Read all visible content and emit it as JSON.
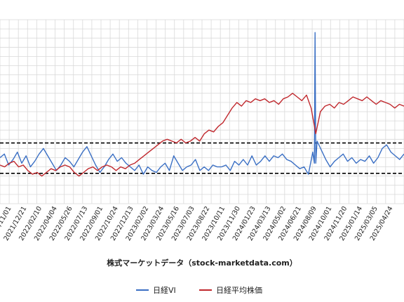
{
  "chart_data": {
    "type": "line",
    "x_tick_labels": [
      "2021/11/01",
      "2021/12/21",
      "2022/02/10",
      "2022/04/04",
      "2022/05/26",
      "2022/07/13",
      "2022/09/01",
      "2022/10/24",
      "2022/12/13",
      "2023/02/02",
      "2023/03/24",
      "2023/05/16",
      "2023/07/03",
      "2023/08/22",
      "2023/10/11",
      "2023/11/30",
      "2024/01/23",
      "2024/03/13",
      "2024/05/02",
      "2024/06/21",
      "2024/08/09",
      "2024/10/01",
      "2024/11/20",
      "2025/01/14",
      "2025/03/05",
      "2025/04/24"
    ],
    "reference_lines": [
      {
        "style": "dashed",
        "color": "#000000",
        "y_fraction_of_plot": 0.67
      },
      {
        "style": "dashed",
        "color": "#000000",
        "y_fraction_of_plot": 0.835
      }
    ],
    "grid": true,
    "legend_placement": "bottom",
    "series": [
      {
        "name": "日経VI",
        "color": "#3a6fc4",
        "values": [
          0.75,
          0.73,
          0.79,
          0.76,
          0.72,
          0.78,
          0.74,
          0.8,
          0.77,
          0.73,
          0.7,
          0.74,
          0.78,
          0.82,
          0.79,
          0.75,
          0.77,
          0.8,
          0.76,
          0.72,
          0.69,
          0.74,
          0.79,
          0.83,
          0.8,
          0.76,
          0.73,
          0.77,
          0.75,
          0.78,
          0.8,
          0.82,
          0.79,
          0.84,
          0.8,
          0.82,
          0.83,
          0.8,
          0.78,
          0.82,
          0.74,
          0.78,
          0.82,
          0.8,
          0.79,
          0.76,
          0.82,
          0.8,
          0.82,
          0.79,
          0.8,
          0.8,
          0.79,
          0.82,
          0.77,
          0.79,
          0.76,
          0.79,
          0.74,
          0.79,
          0.77,
          0.74,
          0.77,
          0.74,
          0.75,
          0.73,
          0.76,
          0.77,
          0.79,
          0.81,
          0.8,
          0.84,
          0.72,
          0.66,
          0.71,
          0.76,
          0.8,
          0.77,
          0.75,
          0.73,
          0.77,
          0.75,
          0.78,
          0.76,
          0.77,
          0.74,
          0.78,
          0.75,
          0.7,
          0.68,
          0.72,
          0.74,
          0.76,
          0.73
        ],
        "spike": {
          "near_label": "2024/08/09",
          "value": 0.07
        }
      },
      {
        "name": "日経平均株価",
        "color": "#c0282d",
        "values": [
          0.79,
          0.8,
          0.78,
          0.77,
          0.8,
          0.79,
          0.82,
          0.84,
          0.83,
          0.85,
          0.83,
          0.81,
          0.82,
          0.8,
          0.79,
          0.8,
          0.83,
          0.85,
          0.83,
          0.81,
          0.8,
          0.82,
          0.8,
          0.79,
          0.8,
          0.82,
          0.8,
          0.81,
          0.79,
          0.78,
          0.76,
          0.74,
          0.72,
          0.7,
          0.68,
          0.66,
          0.65,
          0.66,
          0.67,
          0.65,
          0.67,
          0.66,
          0.64,
          0.66,
          0.62,
          0.6,
          0.61,
          0.58,
          0.56,
          0.52,
          0.48,
          0.45,
          0.47,
          0.44,
          0.45,
          0.43,
          0.44,
          0.43,
          0.45,
          0.44,
          0.46,
          0.43,
          0.42,
          0.4,
          0.42,
          0.44,
          0.41,
          0.48,
          0.62,
          0.5,
          0.47,
          0.46,
          0.48,
          0.45,
          0.46,
          0.44,
          0.42,
          0.43,
          0.44,
          0.42,
          0.44,
          0.46,
          0.44,
          0.45,
          0.46,
          0.48,
          0.46,
          0.47
        ]
      }
    ]
  },
  "source_caption": "株式マーケットデータ（stock-marketdata.com）",
  "legend": {
    "vi_label": "日経VI",
    "nikkei_label": "日経平均株価"
  },
  "colors": {
    "vi": "#3a6fc4",
    "nikkei": "#c0282d",
    "grid": "#d9d9d9",
    "ref": "#000000"
  }
}
